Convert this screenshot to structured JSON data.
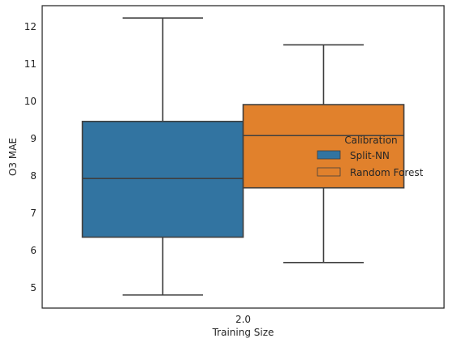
{
  "chart_data": {
    "type": "box",
    "xlabel": "Training Size",
    "ylabel": "O3 MAE",
    "categories": [
      "2.0"
    ],
    "ylim": [
      4.45,
      12.55
    ],
    "yticks": [
      5,
      6,
      7,
      8,
      9,
      10,
      11,
      12
    ],
    "grid": false,
    "legend": {
      "title": "Calibration",
      "placement": "center-right",
      "entries": [
        "Split-NN",
        "Random Forest"
      ]
    },
    "series": [
      {
        "name": "Split-NN",
        "color": "#3274a1",
        "whisker_low": 4.8,
        "q1": 6.35,
        "median": 7.92,
        "q3": 9.45,
        "whisker_high": 12.22
      },
      {
        "name": "Random Forest",
        "color": "#e1812c",
        "whisker_low": 5.67,
        "q1": 7.67,
        "median": 9.07,
        "q3": 9.9,
        "whisker_high": 11.5
      }
    ]
  },
  "colors": {
    "edge": "#3f3f3f",
    "axis": "#262626"
  }
}
